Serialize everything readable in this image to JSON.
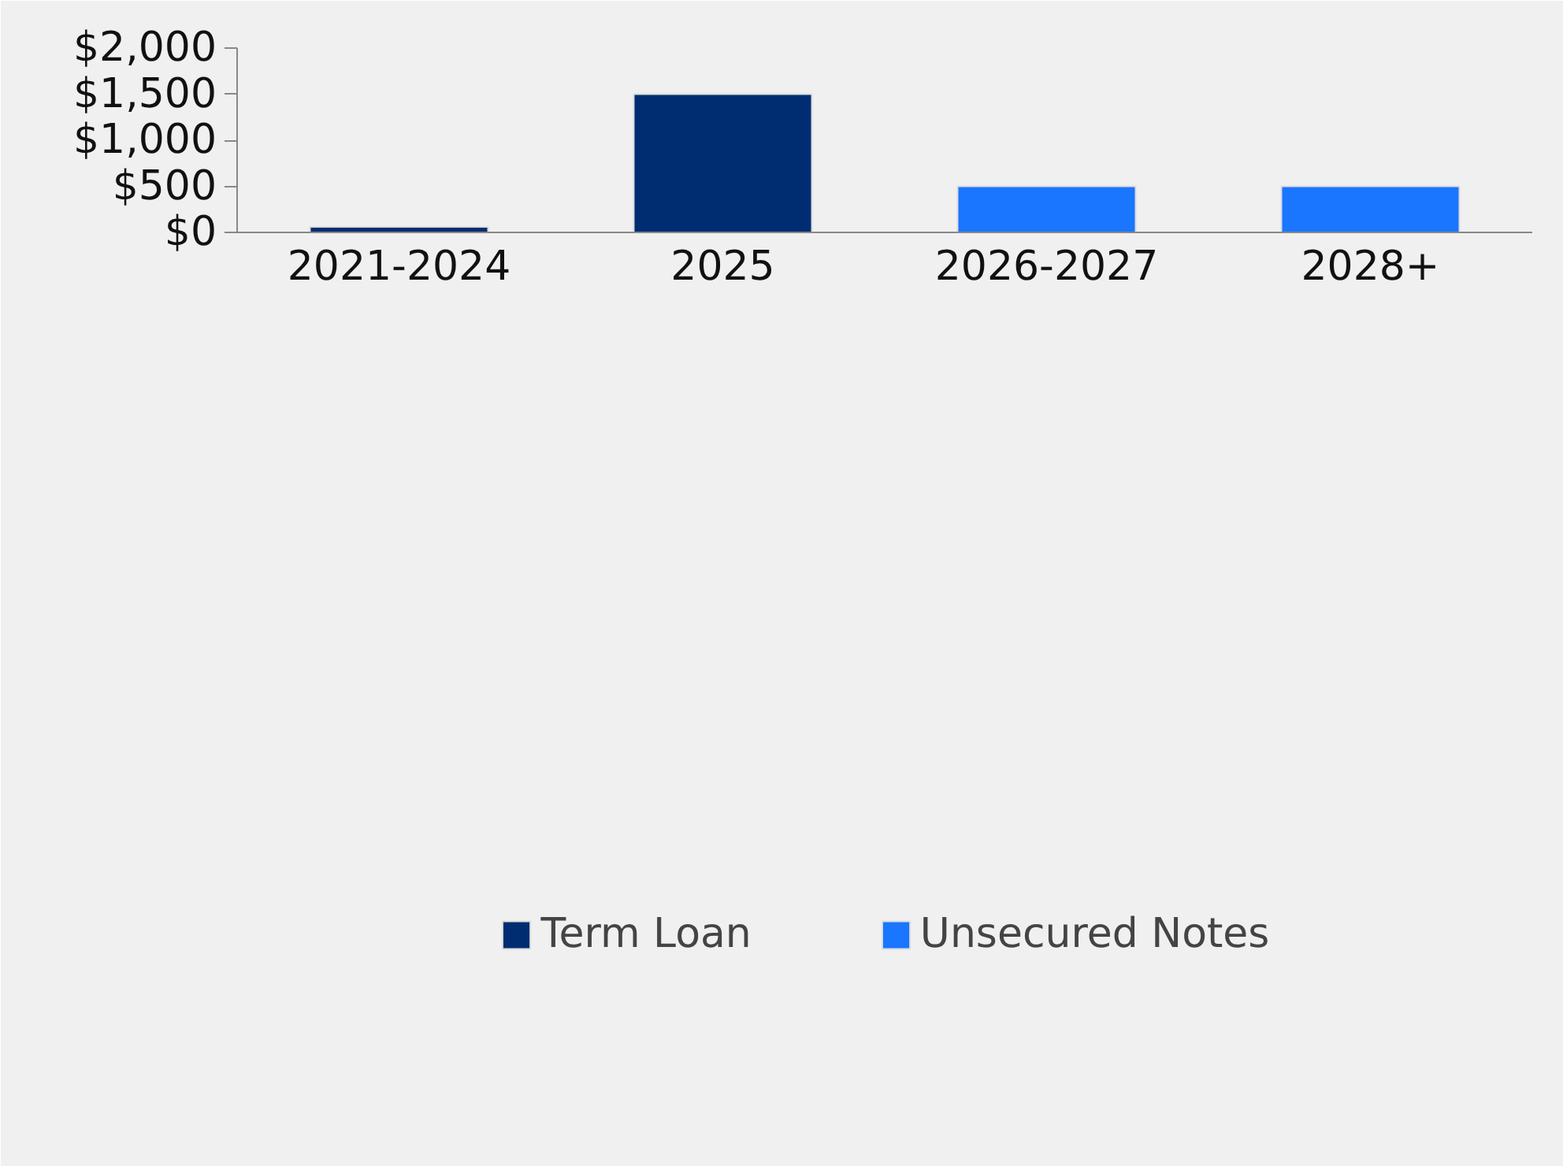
{
  "chart_data": {
    "type": "bar",
    "stacked": true,
    "categories": [
      "2021-2024",
      "2025",
      "2026-2027",
      "2028+"
    ],
    "series": [
      {
        "name": "Term Loan",
        "color": "#002d72",
        "values": [
          60,
          1500,
          null,
          null
        ]
      },
      {
        "name": "Unsecured Notes",
        "color": "#1a75ff",
        "values": [
          null,
          null,
          500,
          500
        ]
      }
    ],
    "ylim": [
      0,
      2000
    ],
    "yticks": [
      {
        "value": 0,
        "label": "$0"
      },
      {
        "value": 500,
        "label": "$500"
      },
      {
        "value": 1000,
        "label": "$1,000"
      },
      {
        "value": 1500,
        "label": "$1,500"
      },
      {
        "value": 2000,
        "label": "$2,000"
      }
    ],
    "grid": false,
    "legend": "bottom"
  }
}
